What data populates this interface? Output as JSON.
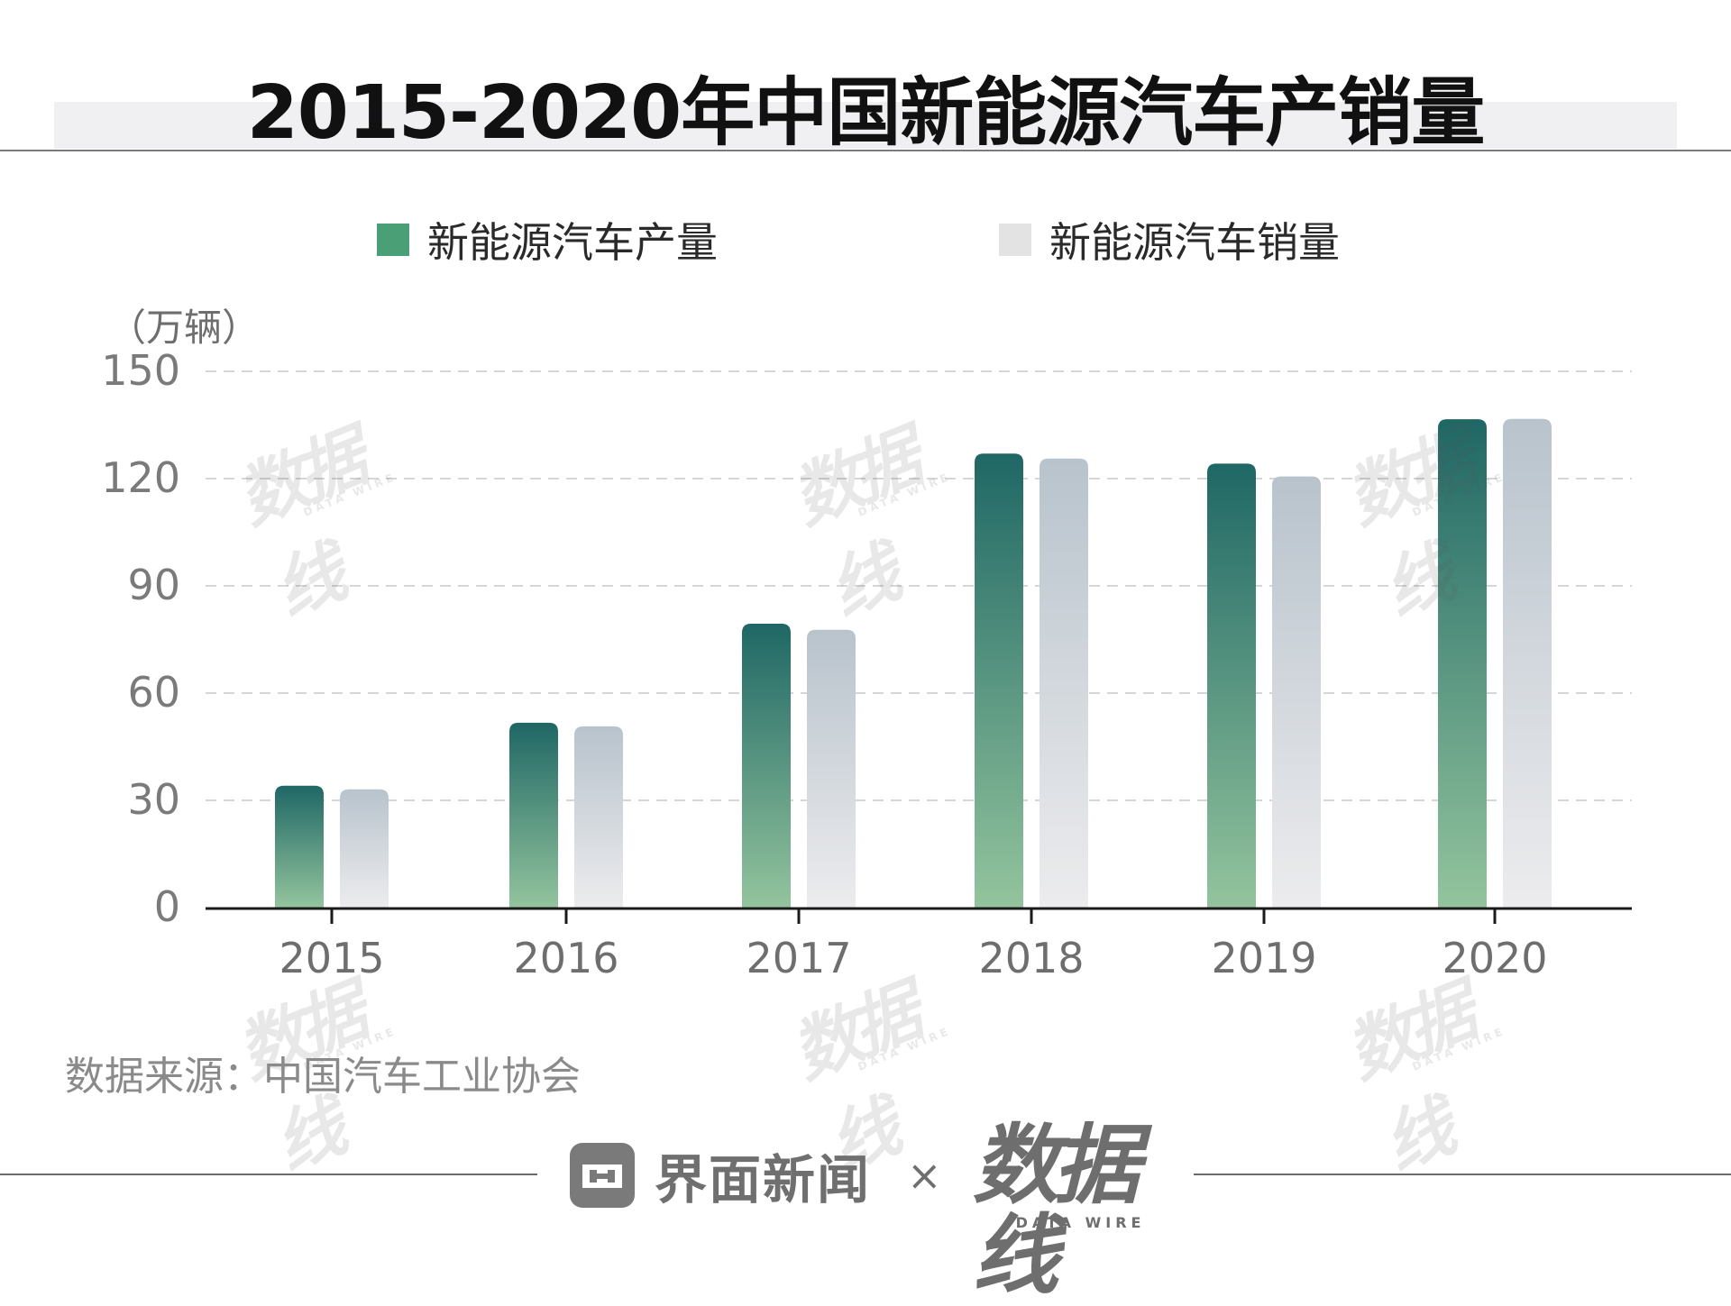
{
  "title": "2015-2020年中国新能源汽车产销量",
  "legend": {
    "production": "新能源汽车产量",
    "sales": "新能源汽车销量"
  },
  "unit_label": "（万辆）",
  "source": "数据来源：中国汽车工业协会",
  "footer": {
    "brand_name": "界面新闻",
    "times": "×",
    "partner_logo_text": "数据线",
    "partner_logo_sub": "DATA WIRE"
  },
  "watermark": {
    "text": "数据线",
    "sub": "DATA WIRE"
  },
  "colors": {
    "production_top": "#1f6765",
    "production_bottom": "#93c49d",
    "sales_top": "#b8c3cc",
    "sales_bottom": "#ececee",
    "legend_production": "#4a9f77",
    "legend_sales": "#e3e3e3"
  },
  "chart_data": {
    "type": "bar",
    "title": "2015-2020年中国新能源汽车产销量",
    "categories": [
      "2015",
      "2016",
      "2017",
      "2018",
      "2019",
      "2020"
    ],
    "series": [
      {
        "name": "新能源汽车产量",
        "values": [
          34.1,
          51.7,
          79.4,
          127.0,
          124.2,
          136.6
        ]
      },
      {
        "name": "新能源汽车销量",
        "values": [
          33.1,
          50.7,
          77.7,
          125.6,
          120.6,
          136.7
        ]
      }
    ],
    "ylabel": "（万辆）",
    "ylim": [
      0,
      150
    ],
    "yticks": [
      0,
      30,
      60,
      90,
      120,
      150
    ],
    "grid": true,
    "legend_position": "top"
  }
}
